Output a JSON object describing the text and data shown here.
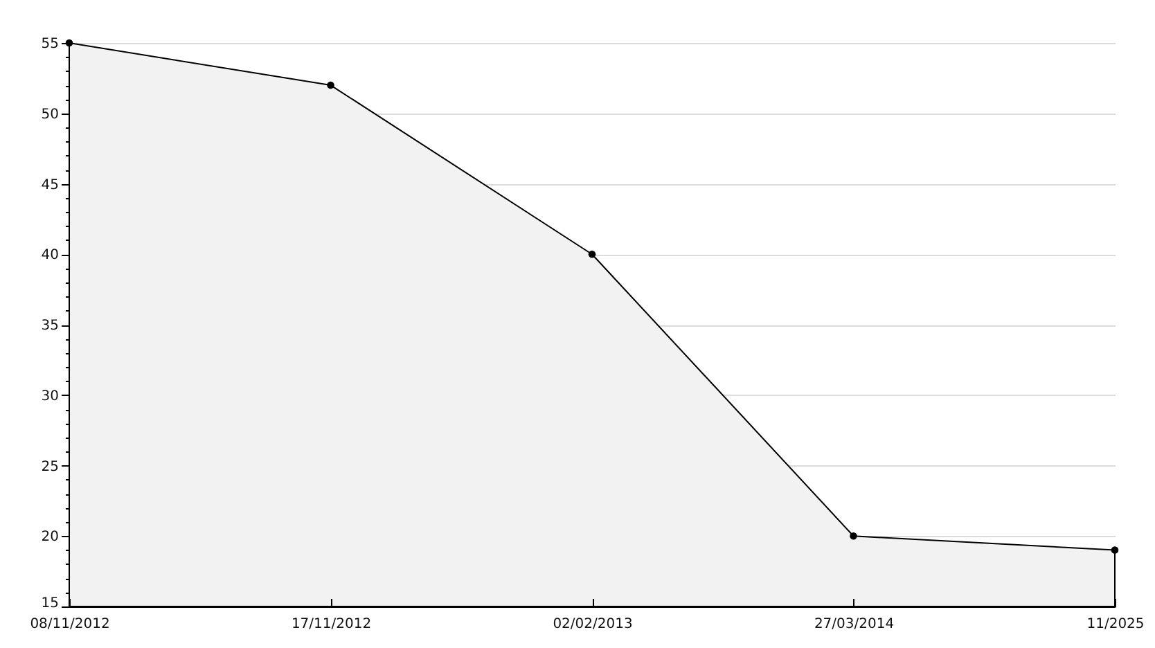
{
  "chart_data": {
    "type": "area",
    "categories": [
      "08/11/2012",
      "17/11/2012",
      "02/02/2013",
      "27/03/2014",
      "11/2025"
    ],
    "values": [
      55,
      52,
      40,
      20,
      19
    ],
    "color": "#f2f2f2",
    "ylim": [
      15,
      55
    ],
    "yticks": [
      15,
      {
        "value": 16,
        "label": null
      },
      {
        "value": 17,
        "label": null
      },
      {
        "value": 18,
        "label": null
      },
      {
        "value": 19,
        "label": null
      },
      20,
      {
        "value": 21,
        "label": null
      },
      {
        "value": 22,
        "label": null
      },
      {
        "value": 23,
        "label": null
      },
      {
        "value": 24,
        "label": null
      },
      25,
      {
        "value": 26,
        "label": null
      },
      {
        "value": 27,
        "label": null
      },
      {
        "value": 28,
        "label": null
      },
      {
        "value": 29,
        "label": null
      },
      30,
      {
        "value": 31,
        "label": null
      },
      {
        "value": 32,
        "label": null
      },
      {
        "value": 33,
        "label": null
      },
      {
        "value": 34,
        "label": null
      },
      35,
      {
        "value": 36,
        "label": null
      },
      {
        "value": 37,
        "label": null
      },
      {
        "value": 38,
        "label": null
      },
      {
        "value": 39,
        "label": null
      },
      40,
      {
        "value": 41,
        "label": null
      },
      {
        "value": 42,
        "label": null
      },
      {
        "value": 43,
        "label": null
      },
      {
        "value": 44,
        "label": null
      },
      45,
      {
        "value": 46,
        "label": null
      },
      {
        "value": 47,
        "label": null
      },
      {
        "value": 48,
        "label": null
      },
      {
        "value": 49,
        "label": null
      },
      50,
      {
        "value": 51,
        "label": null
      },
      {
        "value": 52,
        "label": null
      },
      {
        "value": 53,
        "label": null
      },
      {
        "value": 54,
        "label": null
      },
      55
    ],
    "grid": "y",
    "marker": "circle"
  }
}
